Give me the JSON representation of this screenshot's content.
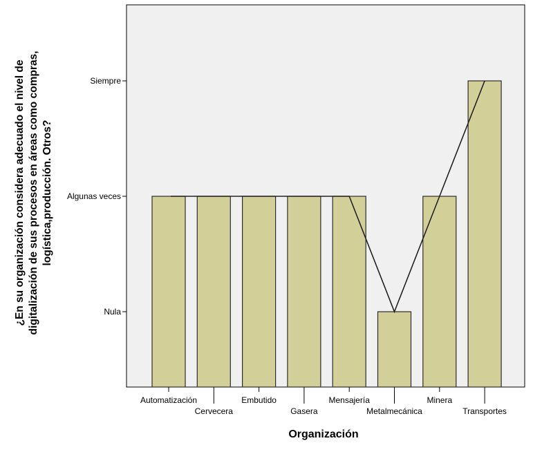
{
  "chart_data": {
    "type": "bar",
    "xlabel": "Organización",
    "ylabel_lines": [
      "¿En su organización considera adecuado el nivel de",
      "digitalización de sus procesos en áreas como compras,",
      "logística,producción. Otros?"
    ],
    "y_levels": [
      "Nula",
      "Algunas veces",
      "Siempre"
    ],
    "categories": [
      "Automatización",
      "Cervecera",
      "Embutido",
      "Gasera",
      "Mensajería",
      "Metalmecánica",
      "Minera",
      "Transportes"
    ],
    "values": [
      "Algunas veces",
      "Algunas veces",
      "Algunas veces",
      "Algunas veces",
      "Algunas veces",
      "Nula",
      "Algunas veces",
      "Siempre"
    ],
    "overlay_line": true,
    "grid": false,
    "colors": {
      "bar_fill": "#d3cf99",
      "bar_stroke": "#2b2b2b",
      "plot_bg": "#f0f0f0",
      "line": "#222222"
    }
  }
}
